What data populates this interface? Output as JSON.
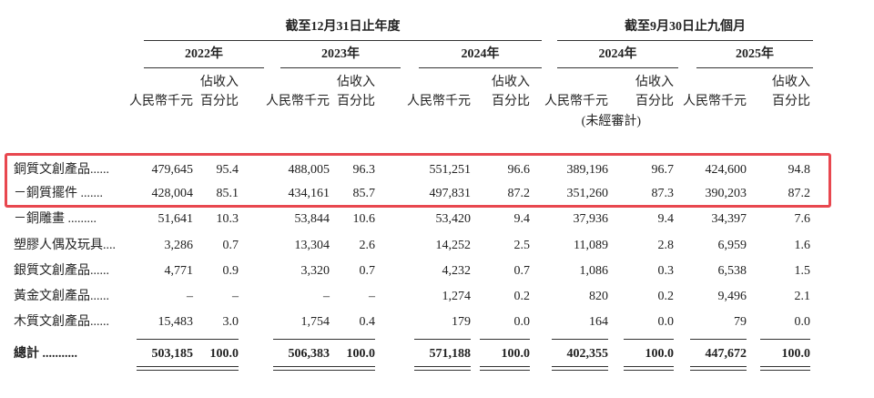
{
  "header": {
    "groups": [
      "截至12月31日止年度",
      "截至9月30日止九個月"
    ],
    "years": [
      "2022年",
      "2023年",
      "2024年",
      "2024年",
      "2025年"
    ],
    "rmb": "人民幣千元",
    "pct": [
      "佔收入",
      "百分比"
    ],
    "unaudited": "(未經審計)"
  },
  "table": {
    "rows": [
      {
        "label": "銅質文創產品......",
        "values": [
          "479,645",
          "95.4",
          "488,005",
          "96.3",
          "551,251",
          "96.6",
          "389,196",
          "96.7",
          "424,600",
          "94.8"
        ]
      },
      {
        "label": "－銅質擺件 .......",
        "values": [
          "428,004",
          "85.1",
          "434,161",
          "85.7",
          "497,831",
          "87.2",
          "351,260",
          "87.3",
          "390,203",
          "87.2"
        ]
      },
      {
        "label": "－銅雕畫 .........",
        "values": [
          "51,641",
          "10.3",
          "53,844",
          "10.6",
          "53,420",
          "9.4",
          "37,936",
          "9.4",
          "34,397",
          "7.6"
        ]
      },
      {
        "label": "塑膠人偶及玩具....",
        "values": [
          "3,286",
          "0.7",
          "13,304",
          "2.6",
          "14,252",
          "2.5",
          "11,089",
          "2.8",
          "6,959",
          "1.6"
        ]
      },
      {
        "label": "銀質文創產品......",
        "values": [
          "4,771",
          "0.9",
          "3,320",
          "0.7",
          "4,232",
          "0.7",
          "1,086",
          "0.3",
          "6,538",
          "1.5"
        ]
      },
      {
        "label": "黃金文創產品......",
        "values": [
          "–",
          "–",
          "–",
          "–",
          "1,274",
          "0.2",
          "820",
          "0.2",
          "9,496",
          "2.1"
        ]
      },
      {
        "label": "木質文創產品......",
        "values": [
          "15,483",
          "3.0",
          "1,754",
          "0.4",
          "179",
          "0.0",
          "164",
          "0.0",
          "79",
          "0.0"
        ]
      }
    ],
    "total": {
      "label": "總計 ...........",
      "values": [
        "503,185",
        "100.0",
        "506,383",
        "100.0",
        "571,188",
        "100.0",
        "402,355",
        "100.0",
        "447,672",
        "100.0"
      ]
    }
  }
}
